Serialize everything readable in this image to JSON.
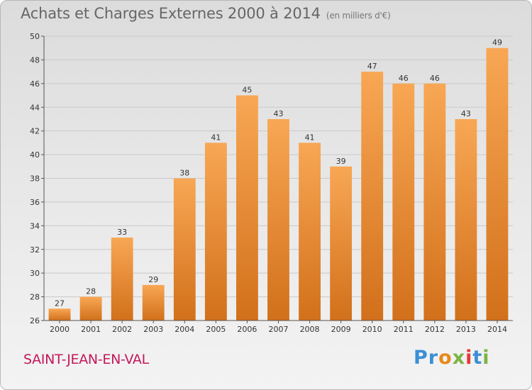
{
  "header": {
    "title": "Achats et Charges Externes 2000 à 2014",
    "subtitle": "(en milliers d'€)"
  },
  "footer": {
    "place": "SAINT-JEAN-EN-VAL",
    "logo_letters": [
      {
        "ch": "P",
        "color": "#3b8fd6"
      },
      {
        "ch": "r",
        "color": "#3b8fd6"
      },
      {
        "ch": "o",
        "color": "#e8891a"
      },
      {
        "ch": "x",
        "color": "#7cb342"
      },
      {
        "ch": "i",
        "color": "#e53935"
      },
      {
        "ch": "t",
        "color": "#3b8fd6"
      },
      {
        "ch": "i",
        "color": "#7cb342"
      }
    ]
  },
  "colors": {
    "bar_top": "#f8a754",
    "bar_bottom": "#d2701b",
    "grid": "#c9c9c9",
    "axis": "#555555"
  },
  "chart_data": {
    "type": "bar",
    "categories": [
      "2000",
      "2001",
      "2002",
      "2003",
      "2004",
      "2005",
      "2006",
      "2007",
      "2008",
      "2009",
      "2010",
      "2011",
      "2012",
      "2013",
      "2014"
    ],
    "values": [
      27,
      28,
      33,
      29,
      38,
      41,
      45,
      43,
      41,
      39,
      47,
      46,
      46,
      43,
      49
    ],
    "ylim": [
      26,
      50
    ],
    "yticks": [
      26,
      28,
      30,
      32,
      34,
      36,
      38,
      40,
      42,
      44,
      46,
      48,
      50
    ],
    "grid": true
  }
}
